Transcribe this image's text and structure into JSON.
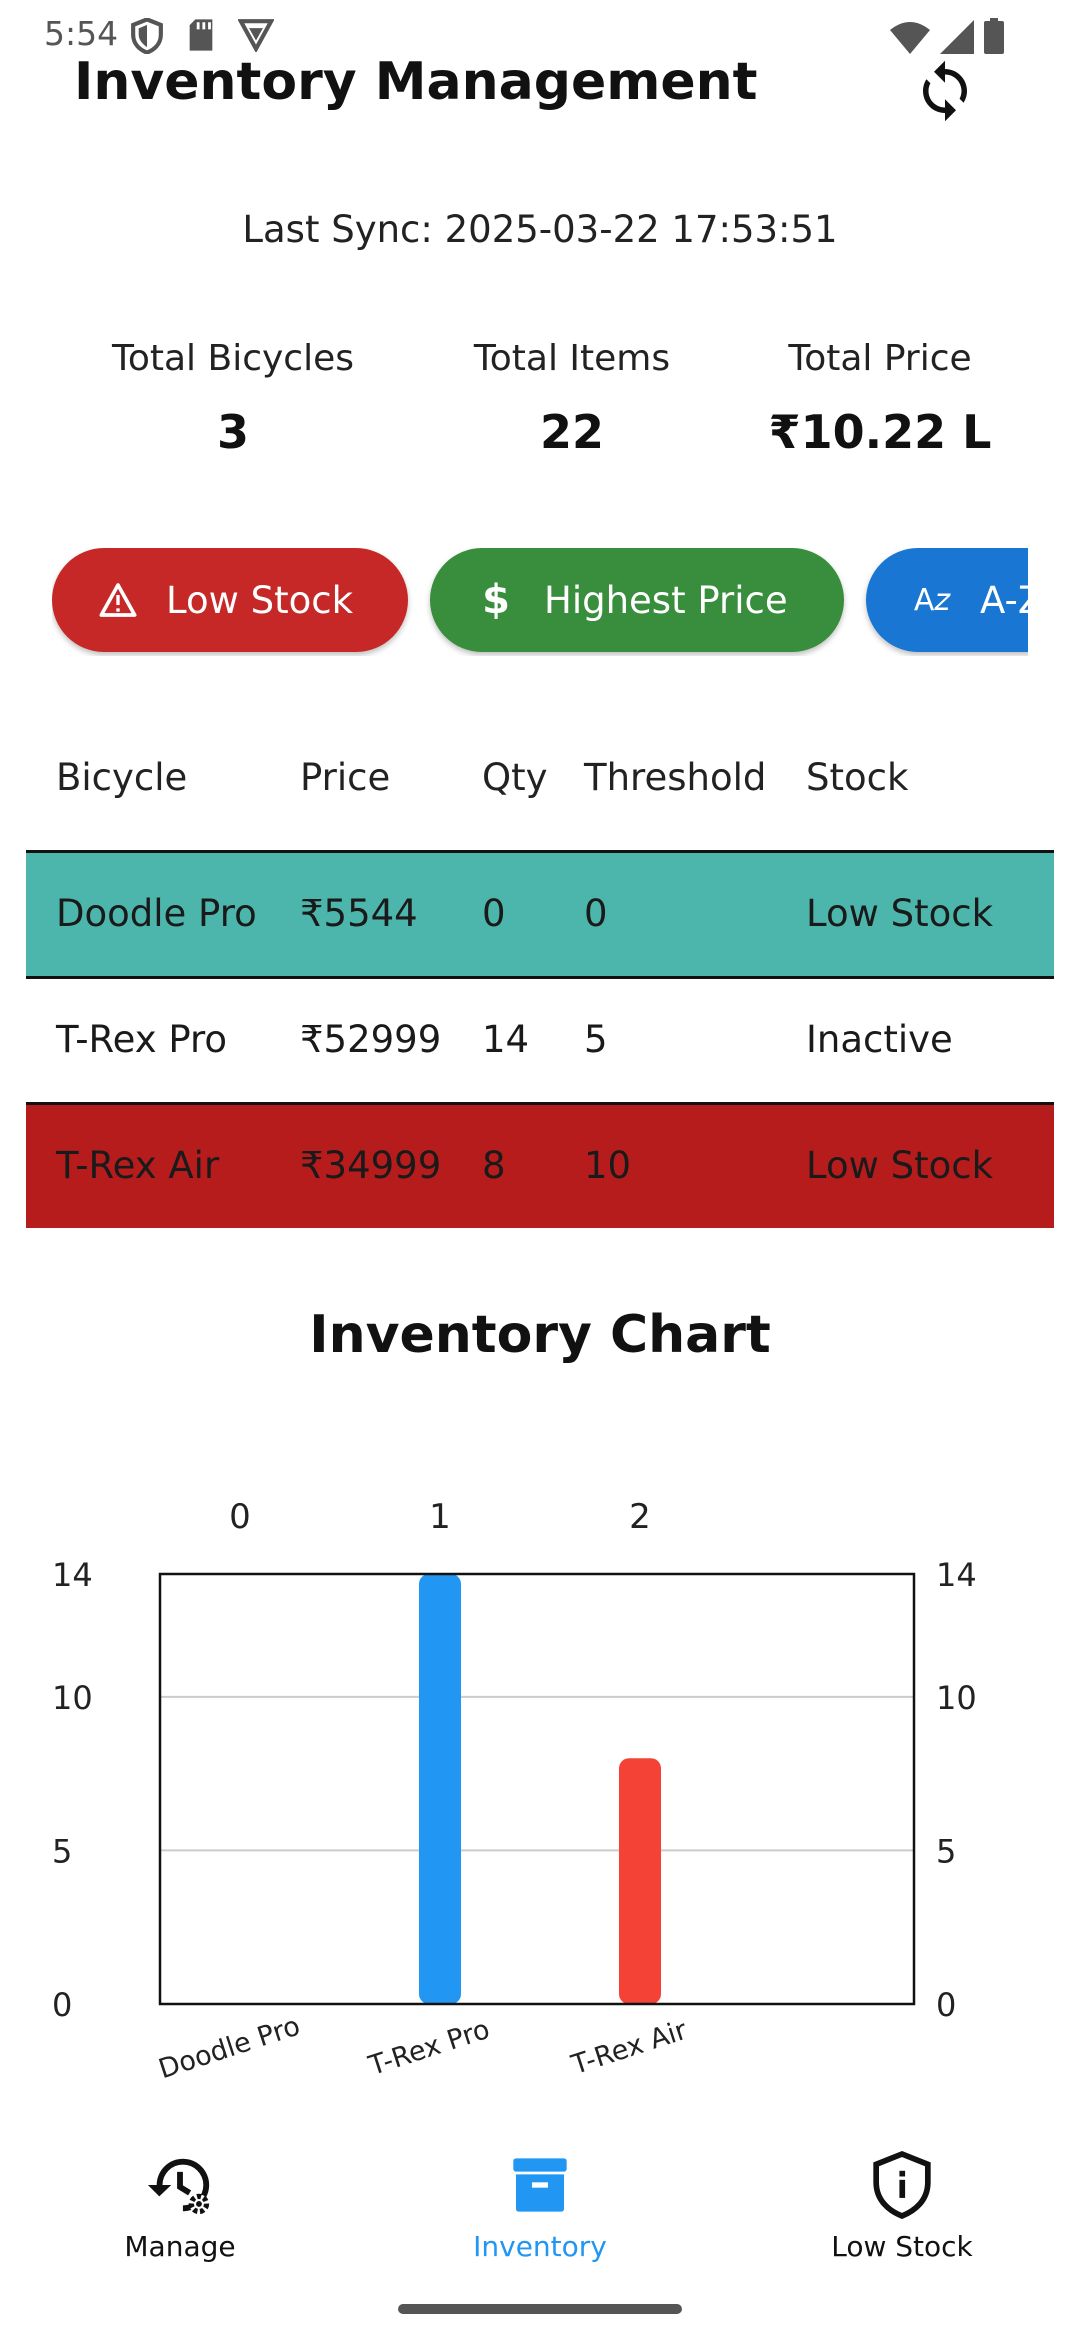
{
  "status_bar": {
    "time": "5:54",
    "left_icons": [
      "shield-icon",
      "sd-card-icon",
      "vpn-icon"
    ],
    "right_icons": [
      "wifi-icon",
      "signal-icon",
      "battery-icon"
    ]
  },
  "header": {
    "title": "Inventory Management",
    "sync_icon": "sync-icon"
  },
  "last_sync": "Last Sync: 2025-03-22 17:53:51",
  "stats": {
    "bicycles": {
      "label": "Total Bicycles",
      "value": "3"
    },
    "items": {
      "label": "Total Items",
      "value": "22"
    },
    "price": {
      "label": "Total Price",
      "value": "₹10.22 L"
    }
  },
  "filters": {
    "low_stock": {
      "label": "Low Stock",
      "icon": "warning-icon",
      "color": "#c62828"
    },
    "highest_price": {
      "label": "Highest Price",
      "icon": "dollar-icon",
      "color": "#388e3c"
    },
    "az": {
      "label": "A-Z",
      "icon": "sort-az-icon",
      "color": "#1976d2"
    }
  },
  "table": {
    "headers": [
      "Bicycle",
      "Price",
      "Qty",
      "Threshold",
      "Stock"
    ],
    "rows": [
      {
        "name": "Doodle Pro",
        "price": "₹5544",
        "qty": "0",
        "threshold": "0",
        "stock": "Low Stock",
        "bg": "#4db6ac"
      },
      {
        "name": "T-Rex Pro",
        "price": "₹52999",
        "qty": "14",
        "threshold": "5",
        "stock": "Inactive",
        "bg": "#ffffff"
      },
      {
        "name": "T-Rex Air",
        "price": "₹34999",
        "qty": "8",
        "threshold": "10",
        "stock": "Low Stock",
        "bg": "#b71c1c"
      }
    ]
  },
  "chart_title": "Inventory Chart",
  "chart_data": {
    "type": "bar",
    "categories": [
      "Doodle Pro",
      "T-Rex Pro",
      "T-Rex Air"
    ],
    "top_ticks": [
      "0",
      "1",
      "2"
    ],
    "values": [
      0,
      14,
      8
    ],
    "bar_colors": [
      "#2196f3",
      "#2196f3",
      "#f44336"
    ],
    "ylim": [
      0,
      14
    ],
    "yticks": [
      0,
      5,
      10,
      14
    ],
    "grid": true
  },
  "bottom_nav": {
    "manage": {
      "label": "Manage",
      "icon": "history-settings-icon"
    },
    "inventory": {
      "label": "Inventory",
      "icon": "archive-box-icon",
      "active_color": "#2196f3"
    },
    "low_stock": {
      "label": "Low Stock",
      "icon": "shield-info-icon"
    }
  }
}
